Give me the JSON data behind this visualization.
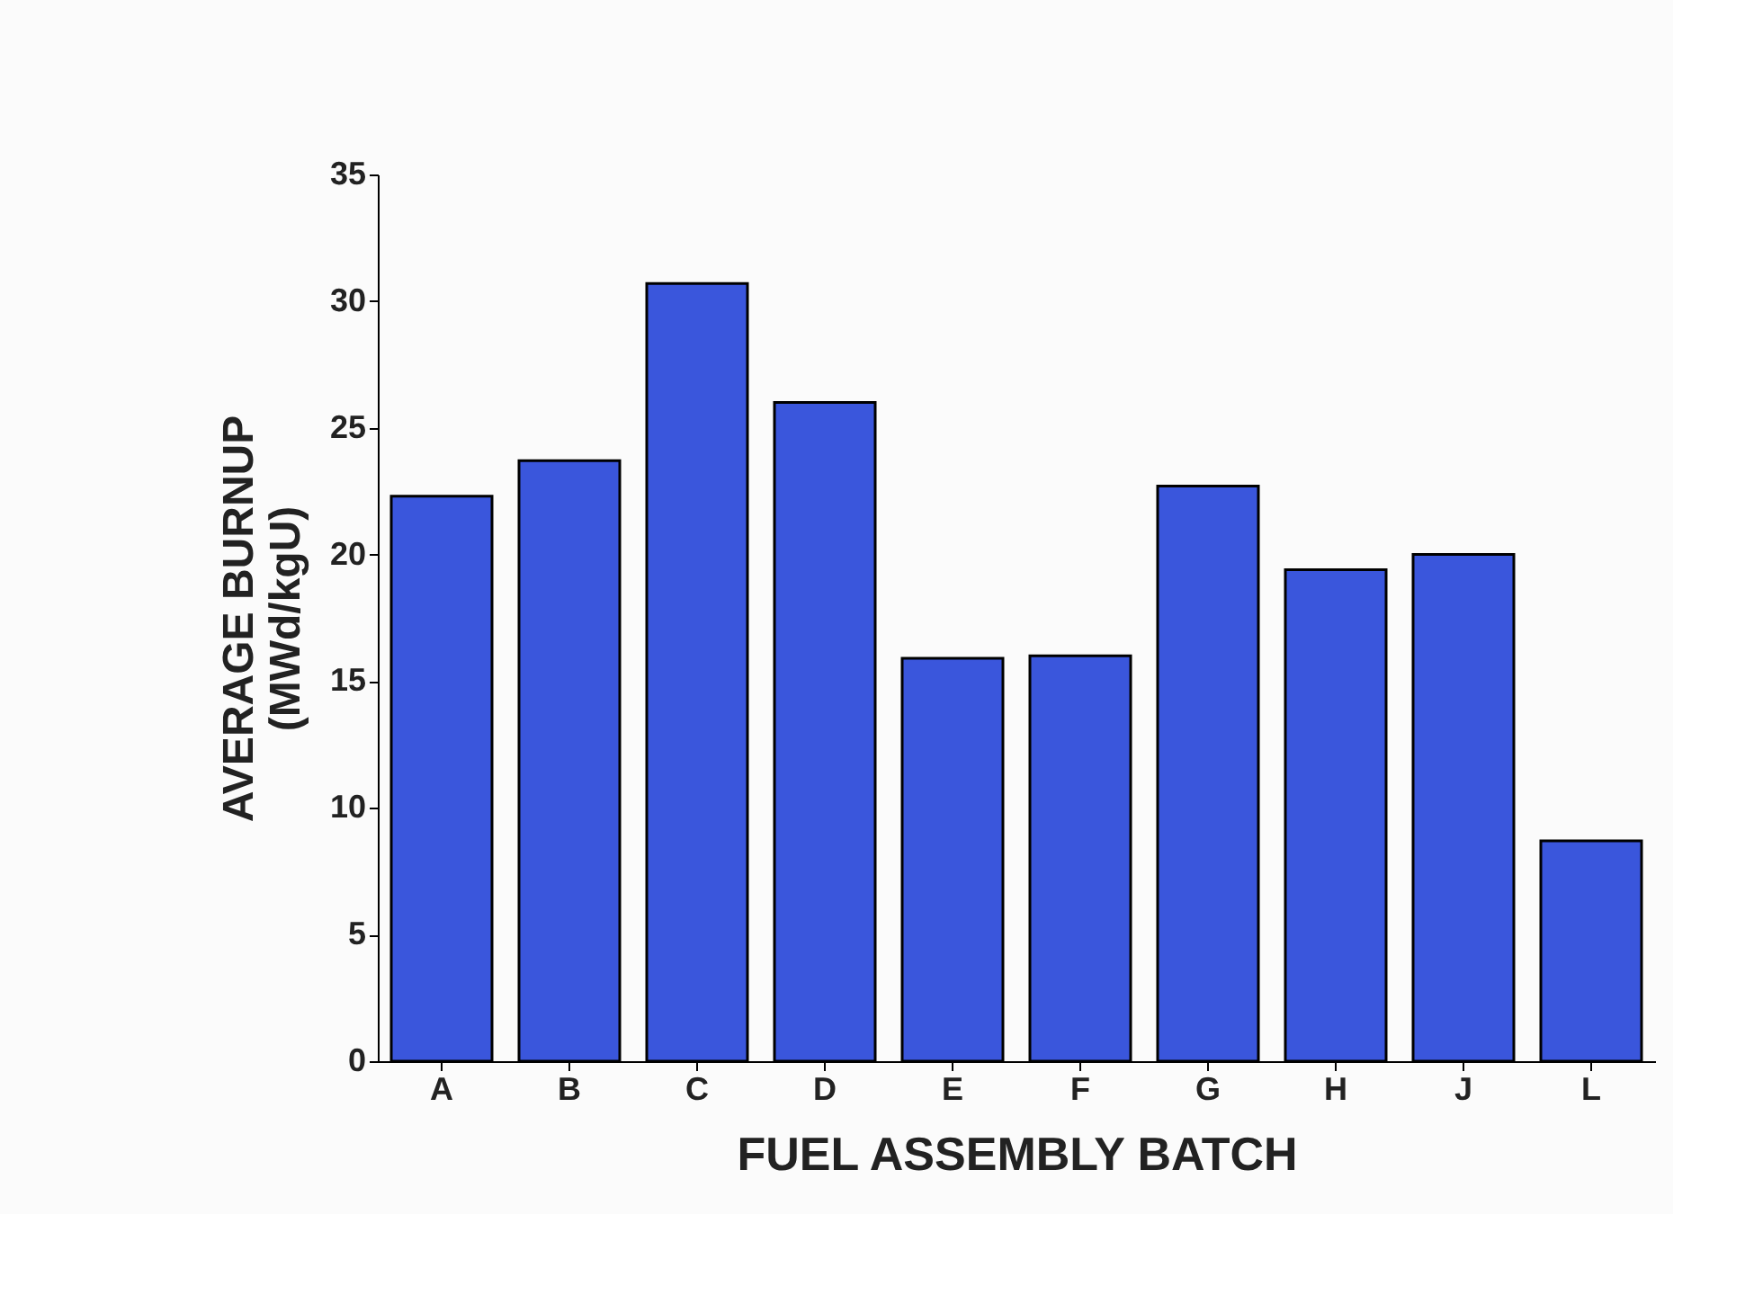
{
  "chart_data": {
    "type": "bar",
    "xlabel": "FUEL ASSEMBLY BATCH",
    "ylabel": "AVERAGE BURNUP (MWd/kgU)",
    "categories": [
      "A",
      "B",
      "C",
      "D",
      "E",
      "F",
      "G",
      "H",
      "J",
      "L"
    ],
    "values": [
      22.3,
      23.7,
      30.7,
      26.0,
      15.9,
      16.0,
      22.7,
      19.4,
      20.0,
      8.7
    ],
    "color": "#3a56dc",
    "ylim": [
      0,
      35
    ],
    "yticks": [
      0,
      5,
      10,
      15,
      20,
      25,
      30,
      35
    ],
    "grid": false
  }
}
